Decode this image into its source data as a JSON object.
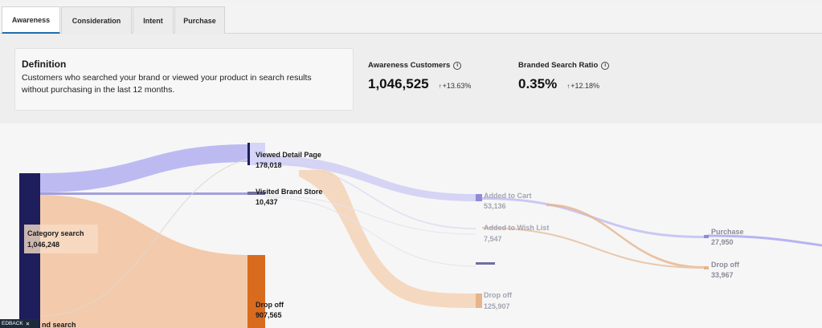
{
  "tabs": [
    {
      "label": "Awareness",
      "active": true
    },
    {
      "label": "Consideration",
      "active": false
    },
    {
      "label": "Intent",
      "active": false
    },
    {
      "label": "Purchase",
      "active": false
    }
  ],
  "definition": {
    "title": "Definition",
    "text": "Customers who searched your brand or viewed your product in search results without purchasing in the last 12 months."
  },
  "metrics": [
    {
      "label": "Awareness Customers",
      "icon": "info-icon",
      "value": "1,046,525",
      "change": "+13.63%",
      "direction": "up"
    },
    {
      "label": "Branded Search Ratio",
      "icon": "info-icon",
      "value": "0.35%",
      "change": "+12.18%",
      "direction": "up"
    }
  ],
  "sankey": {
    "nodes": {
      "category_search": {
        "name": "Category search",
        "value": "1,046,248"
      },
      "viewed_detail": {
        "name": "Viewed Detail Page",
        "value": "178,018"
      },
      "visited_store": {
        "name": "Visited Brand Store",
        "value": "10,437"
      },
      "drop_off_1": {
        "name": "Drop off",
        "value": "907,565"
      },
      "added_cart": {
        "name": "Added to Cart",
        "value": "53,136"
      },
      "wish_list": {
        "name": "Added to Wish List",
        "value": "7,547"
      },
      "drop_off_2": {
        "name": "Drop off",
        "value": "125,907"
      },
      "purchase": {
        "name": "Purchase",
        "value": "27,950"
      },
      "drop_off_3": {
        "name": "Drop off",
        "value": "33,967"
      },
      "branded_partial": "nd search"
    },
    "colors": {
      "dark_navy": "#1e1e5c",
      "lavender": "#b7b4f2",
      "peach": "#f2c29d",
      "orange": "#d96b1f",
      "light_peach": "#f6dcc6",
      "slate": "#6f6fa0"
    }
  },
  "feedback_label": "EDBACK"
}
